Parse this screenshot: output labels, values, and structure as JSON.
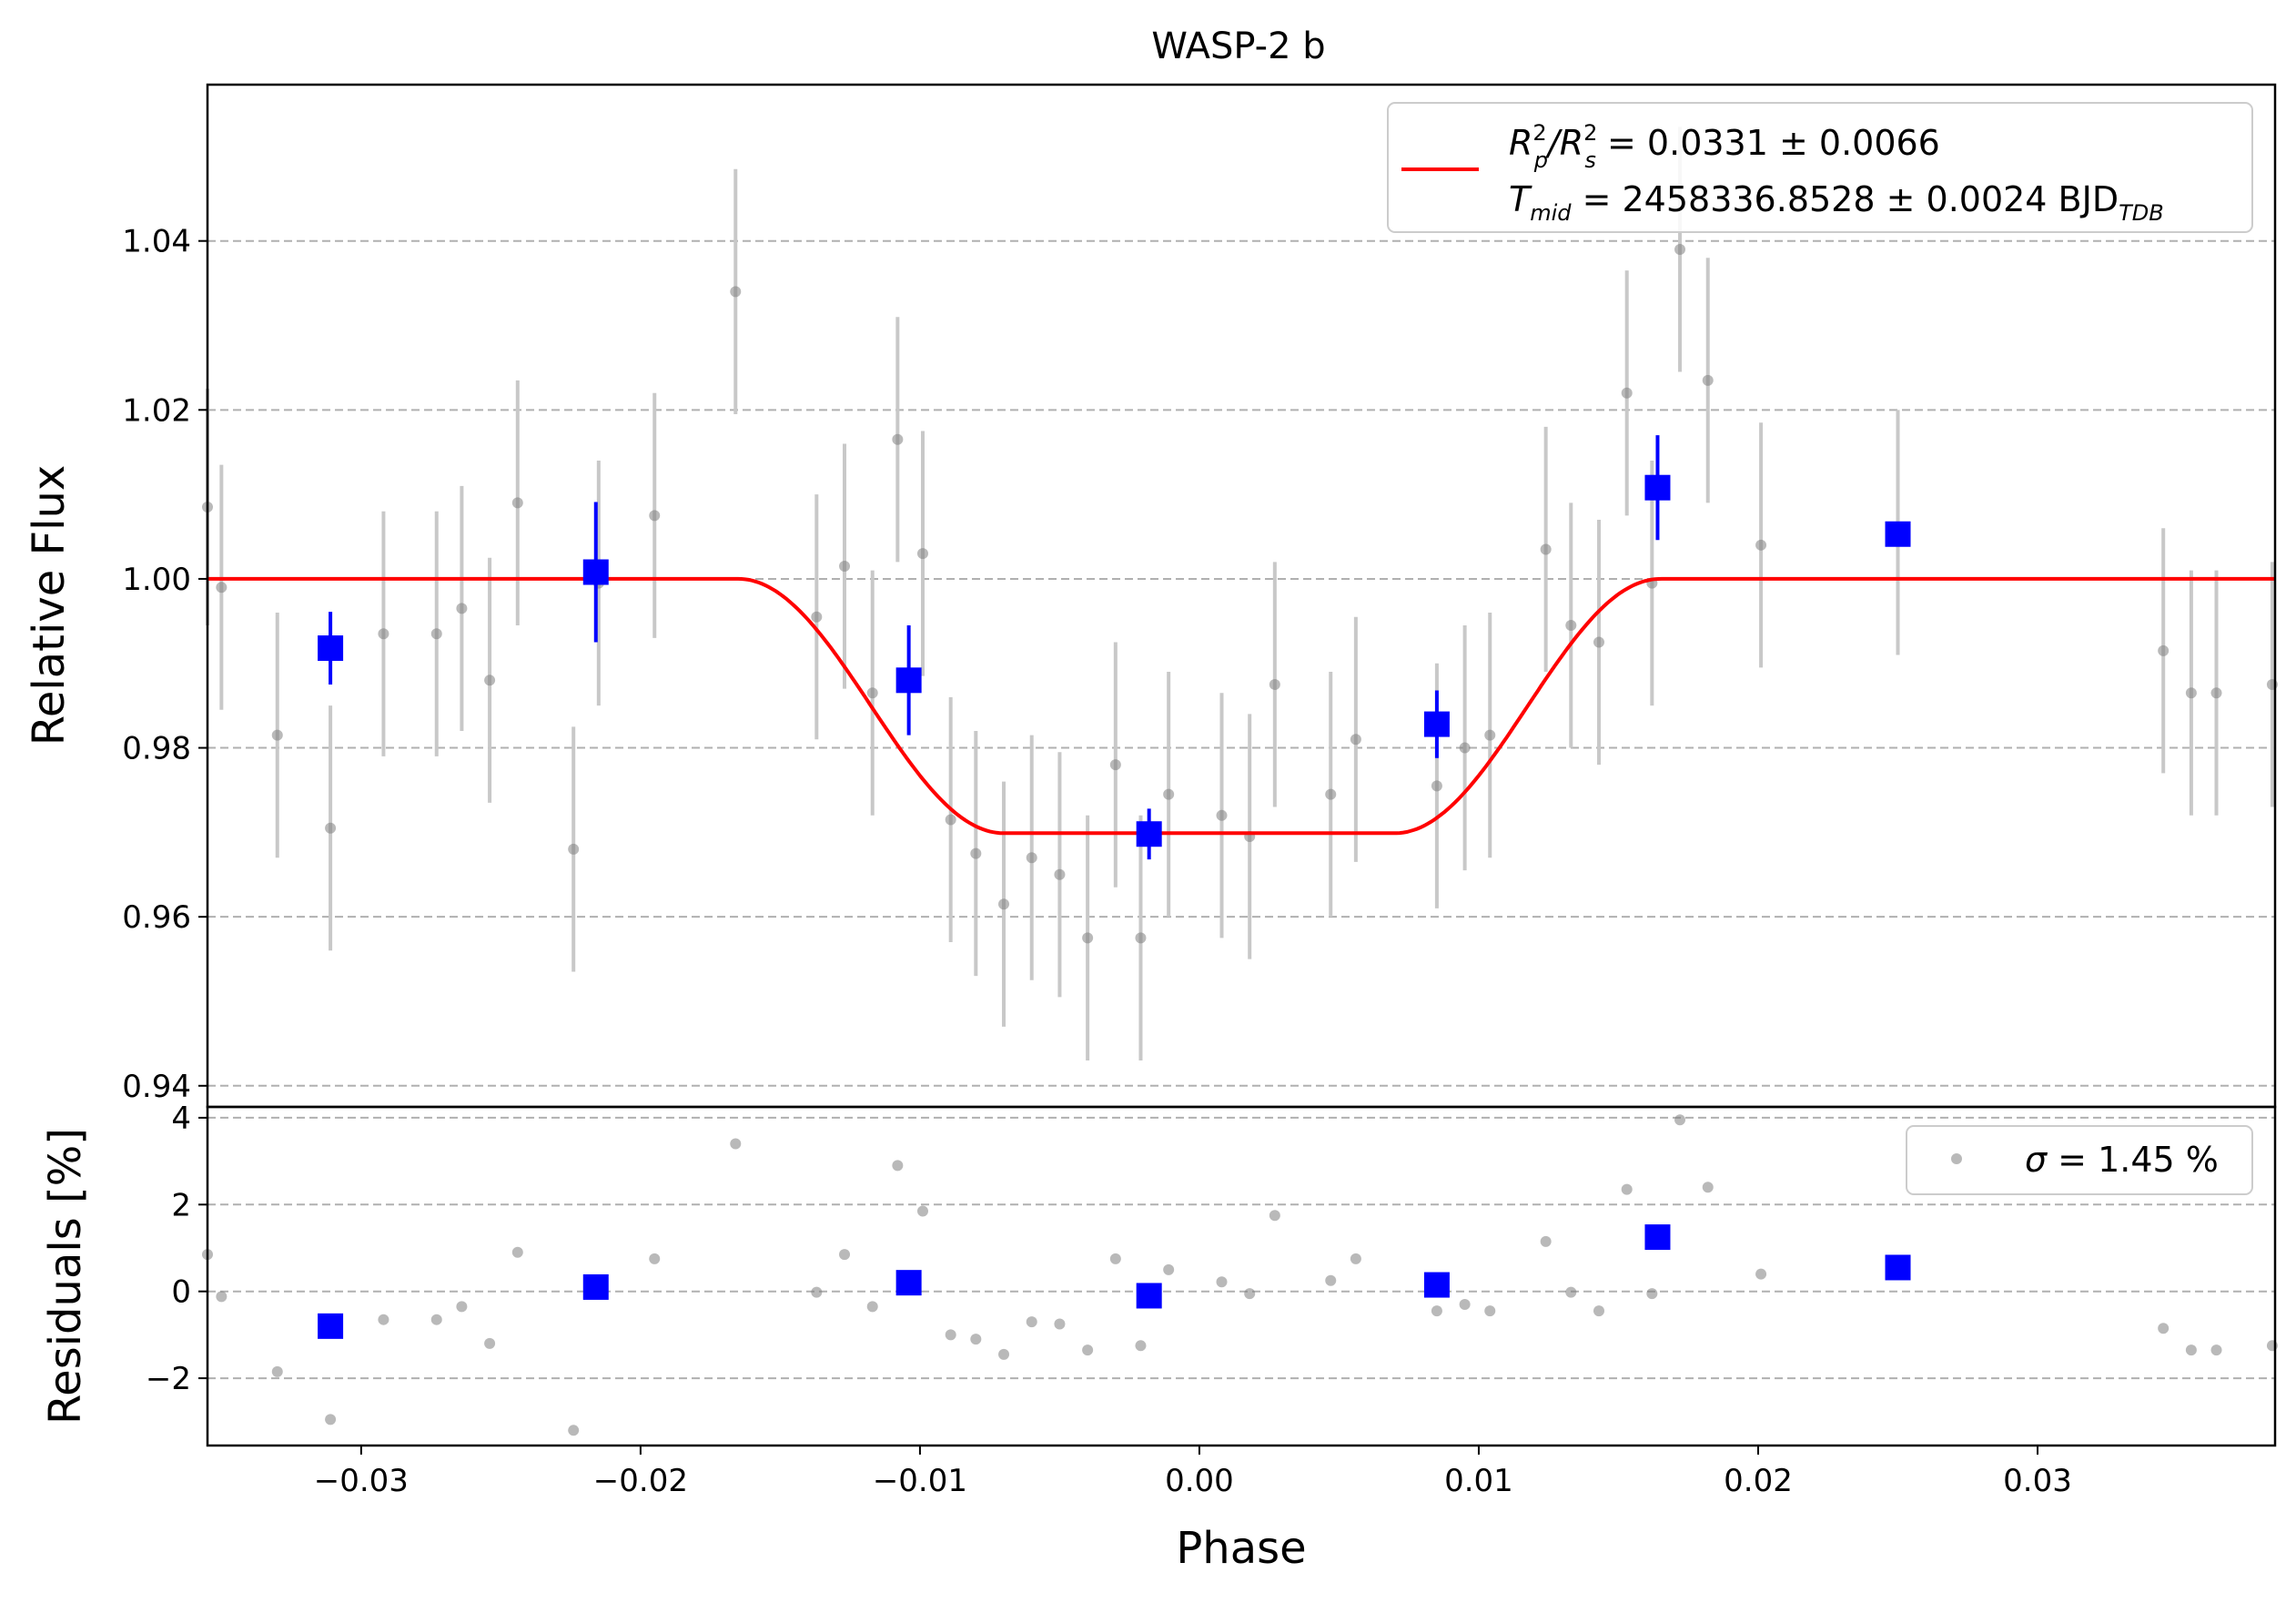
{
  "title": "WASP-2 b",
  "chart_data": [
    {
      "type": "scatter",
      "panel": "light-curve",
      "xlabel": "Phase",
      "ylabel": "Relative Flux",
      "xlim": [
        -0.0355,
        0.0385
      ],
      "ylim": [
        0.9375,
        1.0585
      ],
      "yticks": [
        0.94,
        0.96,
        0.98,
        1.0,
        1.02,
        1.04
      ],
      "ytick_labels": [
        "0.94",
        "0.96",
        "0.98",
        "1.00",
        "1.02",
        "1.04"
      ],
      "grid": "horizontal-dashed",
      "legend_position": "top-right",
      "legend": {
        "line1": {
          "lhs_main": "R",
          "lhs_sup1": "2",
          "lhs_sub1": "p",
          "slash": "/R",
          "lhs_sup2": "2",
          "lhs_sub2": "s",
          "rhs": " = 0.0331 ± 0.0066"
        },
        "line2": {
          "main": "T",
          "sub": "mid",
          "rhs": " = 2458336.8528 ± 0.0024 BJD",
          "unit_sub": "TDB"
        }
      },
      "model": {
        "name": "transit model",
        "color": "#ff0000",
        "depth": 0.0301,
        "t_ingress": 0.0165,
        "t_flat": 0.007
      },
      "series": [
        {
          "name": "data",
          "color": "#808080",
          "x": [
            -0.0355,
            -0.035,
            -0.033,
            -0.0311,
            -0.0292,
            -0.0273,
            -0.0264,
            -0.0254,
            -0.0244,
            -0.0224,
            -0.0215,
            -0.0195,
            -0.0166,
            -0.0137,
            -0.0127,
            -0.0117,
            -0.0108,
            -0.0099,
            -0.0089,
            -0.008,
            -0.007,
            -0.006,
            -0.005,
            -0.004,
            -0.003,
            -0.0021,
            -0.0011,
            0.0008,
            0.0018,
            0.0027,
            0.0047,
            0.0056,
            0.0085,
            0.0095,
            0.0104,
            0.0124,
            0.0133,
            0.0143,
            0.0153,
            0.0162,
            0.0172,
            0.0182,
            0.0201,
            0.025,
            0.0345,
            0.0355,
            0.0364,
            0.0384
          ],
          "y": [
            1.0085,
            0.999,
            0.9815,
            0.9705,
            0.9935,
            0.9935,
            0.9965,
            0.988,
            1.009,
            0.968,
            0.9995,
            1.0075,
            1.034,
            0.9955,
            1.0015,
            0.9865,
            1.0165,
            1.003,
            0.9715,
            0.9675,
            0.9615,
            0.967,
            0.965,
            0.9575,
            0.978,
            0.9575,
            0.9745,
            0.972,
            0.9695,
            0.9875,
            0.9745,
            0.981,
            0.9755,
            0.98,
            0.9815,
            1.0035,
            0.9945,
            0.9925,
            1.022,
            0.9995,
            1.039,
            1.0235,
            1.004,
            1.0055,
            0.9915,
            0.9865,
            0.9865,
            0.9875
          ],
          "err": [
            0.014,
            0.0145,
            0.0145,
            0.0145,
            0.0145,
            0.0145,
            0.0145,
            0.0145,
            0.0145,
            0.0145,
            0.0145,
            0.0145,
            0.0145,
            0.0145,
            0.0145,
            0.0145,
            0.0145,
            0.0145,
            0.0145,
            0.0145,
            0.0145,
            0.0145,
            0.0145,
            0.0145,
            0.0145,
            0.0145,
            0.0145,
            0.0145,
            0.0145,
            0.0145,
            0.0145,
            0.0145,
            0.0145,
            0.0145,
            0.0145,
            0.0145,
            0.0145,
            0.0145,
            0.0145,
            0.0145,
            0.0145,
            0.0145,
            0.0145,
            0.0145,
            0.0145,
            0.0145,
            0.0145,
            0.0145
          ]
        },
        {
          "name": "binned",
          "color": "#0000ff",
          "x": [
            -0.0311,
            -0.0216,
            -0.0104,
            -0.0018,
            0.0085,
            0.0164,
            0.025
          ],
          "y": [
            0.9918,
            1.0008,
            0.988,
            0.9698,
            0.9828,
            1.0108,
            1.0053
          ],
          "err": [
            0.0043,
            0.0083,
            0.0065,
            0.003,
            0.004,
            0.0062,
            0.0
          ]
        }
      ]
    },
    {
      "type": "scatter",
      "panel": "residuals",
      "xlabel": "Phase",
      "ylabel": "Residuals [%]",
      "xlim": [
        -0.0355,
        0.0385
      ],
      "ylim": [
        -3.55,
        4.25
      ],
      "xticks": [
        -0.03,
        -0.02,
        -0.01,
        0.0,
        0.01,
        0.02,
        0.03
      ],
      "xtick_labels": [
        "−0.03",
        "−0.02",
        "−0.01",
        "0.00",
        "0.01",
        "0.02",
        "0.03"
      ],
      "yticks": [
        -2,
        0,
        2,
        4
      ],
      "ytick_labels": [
        "−2",
        "0",
        "2",
        "4"
      ],
      "grid": "horizontal-dashed",
      "legend_position": "top-right",
      "legend": {
        "symbol": "σ",
        "rhs": " = 1.45 %"
      },
      "series": [
        {
          "name": "residuals",
          "color": "#808080",
          "x": [
            -0.0355,
            -0.035,
            -0.033,
            -0.0311,
            -0.0292,
            -0.0273,
            -0.0264,
            -0.0254,
            -0.0244,
            -0.0224,
            -0.0195,
            -0.0166,
            -0.0137,
            -0.0127,
            -0.0117,
            -0.0108,
            -0.0099,
            -0.0089,
            -0.008,
            -0.007,
            -0.006,
            -0.005,
            -0.004,
            -0.003,
            -0.0021,
            -0.0011,
            0.0008,
            0.0018,
            0.0027,
            0.0047,
            0.0056,
            0.0085,
            0.0095,
            0.0104,
            0.0124,
            0.0133,
            0.0143,
            0.0153,
            0.0162,
            0.0172,
            0.0182,
            0.0201,
            0.0345,
            0.0355,
            0.0364,
            0.0384
          ],
          "y": [
            0.85,
            -0.12,
            -1.85,
            -2.95,
            -0.65,
            -0.65,
            -0.35,
            -1.2,
            0.9,
            -3.2,
            0.75,
            3.4,
            -0.02,
            0.85,
            -0.35,
            2.9,
            1.85,
            -1.0,
            -1.1,
            -1.45,
            -0.7,
            -0.75,
            -1.35,
            0.75,
            -1.25,
            0.5,
            0.22,
            -0.05,
            1.75,
            0.25,
            0.75,
            -0.45,
            -0.3,
            -0.45,
            1.15,
            -0.02,
            -0.45,
            2.35,
            -0.05,
            3.95,
            2.4,
            0.4,
            -0.85,
            -1.35,
            -1.35,
            -1.25
          ]
        },
        {
          "name": "binned residuals",
          "color": "#0000ff",
          "x": [
            -0.0311,
            -0.0216,
            -0.0104,
            -0.0018,
            0.0085,
            0.0164,
            0.025
          ],
          "y": [
            -0.8,
            0.1,
            0.2,
            -0.1,
            0.15,
            1.25,
            0.55
          ]
        }
      ]
    }
  ]
}
